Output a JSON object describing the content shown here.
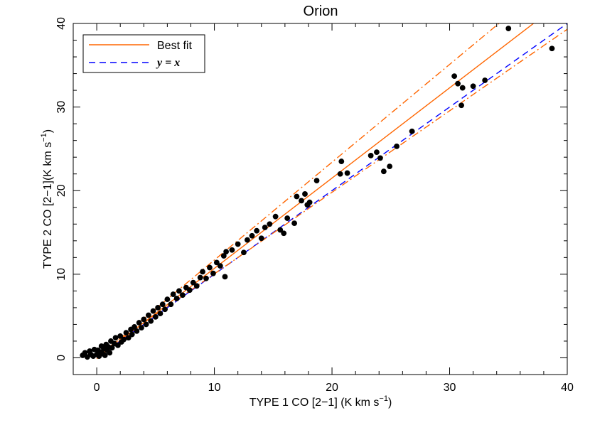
{
  "chart_data": {
    "type": "scatter",
    "title": "Orion",
    "xlabel": "TYPE 1 CO [2−1] (K km s",
    "xlabel_sup": "−1",
    "xlabel_end": ")",
    "ylabel": "TYPE 2 CO [2−1](K km s",
    "ylabel_sup": "−1",
    "ylabel_end": ")",
    "xlim": [
      -2,
      40
    ],
    "ylim": [
      -2,
      40
    ],
    "x_ticks": [
      0,
      10,
      20,
      30,
      40
    ],
    "x_tick_labels": [
      "0",
      "10",
      "20",
      "30",
      "40"
    ],
    "y_ticks": [
      0,
      10,
      20,
      30,
      40
    ],
    "y_tick_labels": [
      "0",
      "10",
      "20",
      "30",
      "40"
    ],
    "grid": false,
    "legend": {
      "placement": "top-left",
      "entries": [
        {
          "label": "Best fit",
          "color": "#ff6600",
          "style": "solid"
        },
        {
          "label": "y = x",
          "color": "#0000ff",
          "style": "dashed"
        }
      ]
    },
    "series": [
      {
        "name": "points",
        "kind": "scatter",
        "color": "#000000",
        "points": [
          [
            -1.2,
            0.3
          ],
          [
            -1.0,
            0.6
          ],
          [
            -0.8,
            0.1
          ],
          [
            -0.6,
            0.8
          ],
          [
            -0.5,
            0.4
          ],
          [
            -0.3,
            0.2
          ],
          [
            -0.2,
            1.0
          ],
          [
            0.0,
            0.4
          ],
          [
            0.1,
            0.9
          ],
          [
            0.2,
            0.2
          ],
          [
            0.3,
            0.7
          ],
          [
            0.4,
            1.4
          ],
          [
            0.5,
            0.5
          ],
          [
            0.6,
            1.1
          ],
          [
            0.7,
            0.3
          ],
          [
            0.8,
            1.6
          ],
          [
            0.9,
            0.9
          ],
          [
            1.0,
            1.3
          ],
          [
            1.1,
            0.6
          ],
          [
            1.2,
            2.0
          ],
          [
            1.3,
            1.2
          ],
          [
            1.5,
            1.7
          ],
          [
            1.6,
            2.4
          ],
          [
            1.8,
            1.5
          ],
          [
            2.0,
            2.6
          ],
          [
            2.1,
            1.9
          ],
          [
            2.3,
            2.2
          ],
          [
            2.5,
            3.0
          ],
          [
            2.7,
            2.4
          ],
          [
            2.9,
            3.4
          ],
          [
            3.0,
            2.8
          ],
          [
            3.2,
            3.7
          ],
          [
            3.4,
            3.2
          ],
          [
            3.6,
            4.2
          ],
          [
            3.8,
            3.6
          ],
          [
            4.0,
            4.6
          ],
          [
            4.2,
            4.0
          ],
          [
            4.4,
            5.1
          ],
          [
            4.6,
            4.4
          ],
          [
            4.8,
            5.6
          ],
          [
            5.0,
            4.9
          ],
          [
            5.2,
            6.0
          ],
          [
            5.4,
            5.3
          ],
          [
            5.6,
            6.4
          ],
          [
            5.8,
            5.8
          ],
          [
            6.0,
            7.0
          ],
          [
            6.3,
            6.4
          ],
          [
            6.5,
            7.6
          ],
          [
            6.8,
            7.1
          ],
          [
            7.0,
            8.0
          ],
          [
            7.3,
            7.5
          ],
          [
            7.6,
            8.4
          ],
          [
            7.9,
            8.1
          ],
          [
            8.2,
            9.0
          ],
          [
            8.5,
            8.6
          ],
          [
            8.8,
            9.6
          ],
          [
            9.0,
            10.3
          ],
          [
            9.3,
            9.5
          ],
          [
            9.6,
            10.8
          ],
          [
            9.9,
            10.1
          ],
          [
            10.2,
            11.4
          ],
          [
            10.5,
            11.0
          ],
          [
            10.8,
            12.2
          ],
          [
            11.0,
            12.7
          ],
          [
            10.9,
            9.7
          ],
          [
            11.5,
            12.9
          ],
          [
            12.0,
            13.6
          ],
          [
            12.5,
            12.6
          ],
          [
            12.8,
            14.1
          ],
          [
            13.2,
            14.6
          ],
          [
            13.6,
            15.2
          ],
          [
            14.0,
            14.3
          ],
          [
            14.3,
            15.6
          ],
          [
            14.7,
            16.0
          ],
          [
            15.2,
            16.9
          ],
          [
            15.6,
            15.3
          ],
          [
            15.9,
            14.9
          ],
          [
            16.2,
            16.7
          ],
          [
            16.8,
            16.1
          ],
          [
            17.0,
            19.3
          ],
          [
            17.4,
            18.8
          ],
          [
            17.7,
            19.6
          ],
          [
            17.9,
            18.3
          ],
          [
            18.1,
            18.6
          ],
          [
            18.7,
            21.2
          ],
          [
            20.8,
            23.5
          ],
          [
            20.7,
            22.0
          ],
          [
            21.3,
            22.1
          ],
          [
            23.3,
            24.2
          ],
          [
            23.8,
            24.6
          ],
          [
            24.1,
            23.9
          ],
          [
            24.4,
            22.3
          ],
          [
            24.9,
            22.9
          ],
          [
            25.5,
            25.3
          ],
          [
            26.8,
            27.1
          ],
          [
            30.4,
            33.7
          ],
          [
            30.7,
            32.8
          ],
          [
            31.1,
            32.3
          ],
          [
            31.0,
            30.2
          ],
          [
            32.0,
            32.5
          ],
          [
            33.0,
            33.2
          ],
          [
            35.0,
            39.4
          ],
          [
            38.7,
            37.0
          ]
        ]
      },
      {
        "name": "Best fit",
        "kind": "line",
        "color": "#ff6600",
        "style": "solid",
        "x": [
          0,
          40
        ],
        "y": [
          -0.1,
          43.1
        ]
      },
      {
        "name": "y = x",
        "kind": "line",
        "color": "#0000ff",
        "style": "dashed",
        "x": [
          0,
          40
        ],
        "y": [
          0,
          40
        ]
      },
      {
        "name": "upper bound",
        "kind": "line",
        "color": "#ff6600",
        "style": "dashdot",
        "x": [
          0,
          40
        ],
        "y": [
          0,
          46.8
        ]
      },
      {
        "name": "lower bound",
        "kind": "line",
        "color": "#ff6600",
        "style": "dashdot",
        "x": [
          0,
          40
        ],
        "y": [
          0.3,
          39.3
        ]
      }
    ]
  }
}
